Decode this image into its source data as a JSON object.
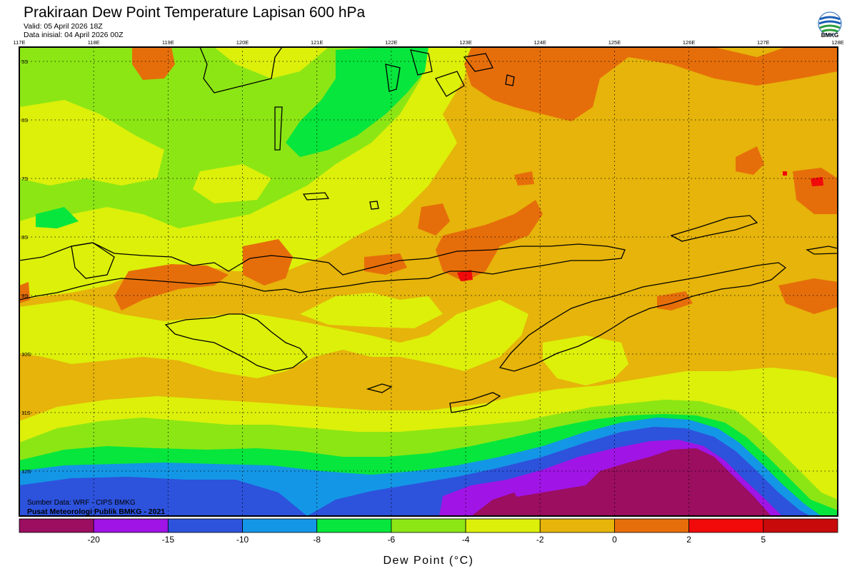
{
  "header": {
    "title": "Prakiraan Dew Point Temperature Lapisan 600 hPa",
    "valid": "Valid: 05 April 2026 18Z",
    "init": "Data inisial: 04 April 2026 00Z"
  },
  "logo": {
    "text": "BMKG",
    "icon": "bmkg-logo-icon"
  },
  "map": {
    "lon_labels": [
      "117E",
      "118E",
      "119E",
      "120E",
      "121E",
      "122E",
      "123E",
      "124E",
      "125E",
      "126E",
      "127E",
      "128E"
    ],
    "lat_labels": [
      "5S",
      "6S",
      "7S",
      "8S",
      "9S",
      "10S",
      "11S",
      "12S"
    ],
    "grid": "dotted",
    "source_line1": "Sumber Data: WRF - CIPS BMKG",
    "source_line2": "Pusat Meteorologi Publik BMKG - 2021"
  },
  "legend": {
    "label": "Dew Point (°C)",
    "ticks": [
      "-20",
      "-15",
      "-10",
      "-8",
      "-6",
      "-4",
      "-2",
      "0",
      "2",
      "5"
    ],
    "colors": [
      "#9b0e60",
      "#a014e6",
      "#2d52dc",
      "#1496e6",
      "#06e63c",
      "#8ce614",
      "#dcf00a",
      "#e6b40a",
      "#e66e0a",
      "#f00a0a",
      "#c80a0a"
    ]
  }
}
